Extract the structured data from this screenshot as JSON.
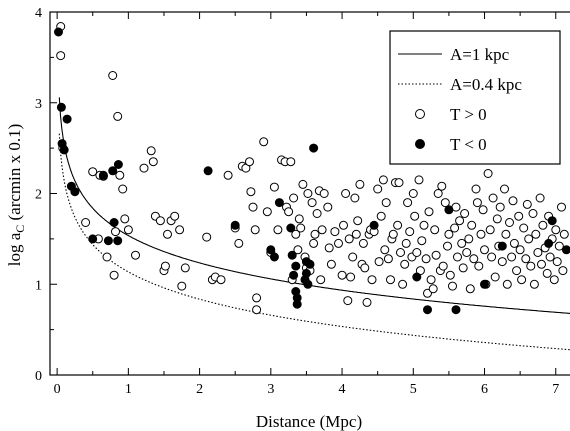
{
  "chart_data": {
    "type": "scatter",
    "title": "",
    "xlabel": "Distance (Mpc)",
    "ylabel": "log a_C (arcmin x 0.1)",
    "ylabel_parts": {
      "pre": "log a",
      "sub": "C",
      "post": " (arcmin x 0.1)"
    },
    "xlim": [
      -0.1,
      7.2
    ],
    "ylim": [
      0,
      4
    ],
    "xticks": [
      0,
      1,
      2,
      3,
      4,
      5,
      6,
      7
    ],
    "yticks": [
      0,
      1,
      2,
      3,
      4
    ],
    "legend_position": "top-right",
    "legend": [
      {
        "label": "A=1 kpc",
        "kind": "line",
        "style": "solid"
      },
      {
        "label": "A=0.4 kpc",
        "kind": "line",
        "style": "dotted"
      },
      {
        "label": "T > 0",
        "kind": "marker",
        "style": "open"
      },
      {
        "label": "T < 0",
        "kind": "marker",
        "style": "filled"
      }
    ],
    "curves": [
      {
        "name": "A=1 kpc",
        "style": "solid",
        "k": 0.4
      },
      {
        "name": "A=0.4 kpc",
        "style": "dotted",
        "k": 0.0
      }
    ],
    "series": [
      {
        "name": "T > 0",
        "marker": "open",
        "points": [
          [
            0.05,
            3.84
          ],
          [
            0.05,
            3.52
          ],
          [
            0.08,
            2.5
          ],
          [
            0.4,
            1.68
          ],
          [
            0.5,
            2.24
          ],
          [
            0.58,
            1.5
          ],
          [
            0.6,
            2.2
          ],
          [
            0.65,
            2.19
          ],
          [
            0.7,
            1.3
          ],
          [
            0.78,
            3.3
          ],
          [
            0.8,
            1.1
          ],
          [
            0.82,
            1.58
          ],
          [
            0.85,
            2.85
          ],
          [
            0.88,
            2.2
          ],
          [
            0.92,
            2.05
          ],
          [
            0.95,
            1.72
          ],
          [
            1.0,
            1.6
          ],
          [
            1.1,
            1.32
          ],
          [
            1.22,
            2.28
          ],
          [
            1.32,
            2.47
          ],
          [
            1.35,
            2.35
          ],
          [
            1.38,
            1.75
          ],
          [
            1.45,
            1.7
          ],
          [
            1.5,
            1.15
          ],
          [
            1.52,
            1.2
          ],
          [
            1.55,
            1.55
          ],
          [
            1.6,
            1.7
          ],
          [
            1.65,
            1.75
          ],
          [
            1.72,
            1.6
          ],
          [
            1.75,
            0.98
          ],
          [
            1.8,
            1.18
          ],
          [
            2.1,
            1.52
          ],
          [
            2.18,
            1.05
          ],
          [
            2.22,
            1.08
          ],
          [
            2.3,
            1.05
          ],
          [
            2.4,
            2.2
          ],
          [
            2.5,
            1.62
          ],
          [
            2.55,
            1.45
          ],
          [
            2.6,
            2.3
          ],
          [
            2.65,
            2.28
          ],
          [
            2.7,
            2.35
          ],
          [
            2.72,
            2.02
          ],
          [
            2.75,
            1.85
          ],
          [
            2.78,
            1.6
          ],
          [
            2.8,
            0.85
          ],
          [
            2.8,
            0.72
          ],
          [
            2.9,
            2.57
          ],
          [
            2.95,
            1.8
          ],
          [
            3.0,
            1.35
          ],
          [
            3.05,
            2.07
          ],
          [
            3.1,
            1.6
          ],
          [
            3.15,
            2.37
          ],
          [
            3.2,
            2.35
          ],
          [
            3.22,
            1.85
          ],
          [
            3.25,
            1.8
          ],
          [
            3.28,
            2.35
          ],
          [
            3.3,
            1.05
          ],
          [
            3.32,
            1.95
          ],
          [
            3.35,
            1.55
          ],
          [
            3.38,
            1.38
          ],
          [
            3.4,
            1.72
          ],
          [
            3.42,
            1.62
          ],
          [
            3.45,
            2.1
          ],
          [
            3.48,
            1.3
          ],
          [
            3.5,
            1.18
          ],
          [
            3.52,
            2.0
          ],
          [
            3.55,
            1.15
          ],
          [
            3.58,
            1.9
          ],
          [
            3.6,
            1.45
          ],
          [
            3.62,
            1.55
          ],
          [
            3.65,
            1.78
          ],
          [
            3.68,
            2.03
          ],
          [
            3.7,
            1.05
          ],
          [
            3.72,
            1.6
          ],
          [
            3.75,
            2.0
          ],
          [
            3.8,
            1.85
          ],
          [
            3.82,
            1.4
          ],
          [
            3.85,
            1.22
          ],
          [
            3.9,
            1.58
          ],
          [
            3.95,
            1.45
          ],
          [
            4.0,
            1.1
          ],
          [
            4.02,
            1.65
          ],
          [
            4.05,
            2.0
          ],
          [
            4.08,
            0.82
          ],
          [
            4.1,
            1.5
          ],
          [
            4.12,
            1.08
          ],
          [
            4.15,
            1.3
          ],
          [
            4.18,
            1.95
          ],
          [
            4.2,
            1.55
          ],
          [
            4.22,
            1.7
          ],
          [
            4.25,
            2.1
          ],
          [
            4.28,
            1.22
          ],
          [
            4.3,
            1.45
          ],
          [
            4.32,
            1.18
          ],
          [
            4.35,
            0.8
          ],
          [
            4.38,
            1.55
          ],
          [
            4.4,
            1.6
          ],
          [
            4.42,
            1.05
          ],
          [
            4.45,
            1.58
          ],
          [
            4.5,
            2.05
          ],
          [
            4.52,
            1.25
          ],
          [
            4.55,
            1.75
          ],
          [
            4.58,
            2.15
          ],
          [
            4.6,
            1.38
          ],
          [
            4.62,
            1.9
          ],
          [
            4.65,
            1.28
          ],
          [
            4.68,
            1.05
          ],
          [
            4.7,
            1.5
          ],
          [
            4.72,
            1.55
          ],
          [
            4.75,
            2.12
          ],
          [
            4.78,
            1.65
          ],
          [
            4.8,
            2.12
          ],
          [
            4.82,
            1.35
          ],
          [
            4.85,
            1.0
          ],
          [
            4.88,
            1.22
          ],
          [
            4.9,
            1.45
          ],
          [
            4.92,
            1.9
          ],
          [
            4.95,
            1.58
          ],
          [
            4.98,
            1.3
          ],
          [
            5.0,
            2.0
          ],
          [
            5.02,
            1.75
          ],
          [
            5.05,
            1.35
          ],
          [
            5.08,
            2.15
          ],
          [
            5.1,
            1.15
          ],
          [
            5.12,
            1.48
          ],
          [
            5.15,
            1.65
          ],
          [
            5.18,
            1.28
          ],
          [
            5.2,
            0.9
          ],
          [
            5.22,
            1.8
          ],
          [
            5.25,
            1.05
          ],
          [
            5.28,
            0.95
          ],
          [
            5.3,
            1.6
          ],
          [
            5.32,
            1.32
          ],
          [
            5.35,
            2.0
          ],
          [
            5.38,
            1.15
          ],
          [
            5.4,
            2.08
          ],
          [
            5.42,
            1.2
          ],
          [
            5.45,
            1.9
          ],
          [
            5.48,
            1.42
          ],
          [
            5.5,
            1.55
          ],
          [
            5.52,
            1.1
          ],
          [
            5.55,
            0.98
          ],
          [
            5.58,
            1.62
          ],
          [
            5.6,
            1.85
          ],
          [
            5.62,
            1.3
          ],
          [
            5.65,
            1.7
          ],
          [
            5.68,
            1.45
          ],
          [
            5.7,
            1.18
          ],
          [
            5.72,
            1.78
          ],
          [
            5.75,
            1.35
          ],
          [
            5.78,
            1.5
          ],
          [
            5.8,
            0.95
          ],
          [
            5.82,
            1.65
          ],
          [
            5.85,
            1.28
          ],
          [
            5.88,
            2.05
          ],
          [
            5.9,
            1.9
          ],
          [
            5.92,
            1.2
          ],
          [
            5.95,
            1.55
          ],
          [
            5.98,
            1.82
          ],
          [
            6.0,
            1.38
          ],
          [
            6.02,
            1.0
          ],
          [
            6.05,
            2.22
          ],
          [
            6.08,
            1.6
          ],
          [
            6.1,
            1.3
          ],
          [
            6.12,
            1.95
          ],
          [
            6.15,
            1.08
          ],
          [
            6.18,
            1.72
          ],
          [
            6.2,
            1.42
          ],
          [
            6.22,
            1.85
          ],
          [
            6.25,
            1.25
          ],
          [
            6.28,
            2.05
          ],
          [
            6.3,
            1.55
          ],
          [
            6.32,
            1.0
          ],
          [
            6.35,
            1.68
          ],
          [
            6.38,
            1.3
          ],
          [
            6.4,
            1.92
          ],
          [
            6.42,
            1.45
          ],
          [
            6.45,
            1.15
          ],
          [
            6.48,
            1.75
          ],
          [
            6.5,
            1.38
          ],
          [
            6.52,
            1.05
          ],
          [
            6.55,
            1.62
          ],
          [
            6.58,
            1.28
          ],
          [
            6.6,
            1.88
          ],
          [
            6.62,
            1.5
          ],
          [
            6.65,
            1.2
          ],
          [
            6.68,
            1.78
          ],
          [
            6.7,
            1.0
          ],
          [
            6.72,
            1.55
          ],
          [
            6.75,
            1.35
          ],
          [
            6.78,
            1.95
          ],
          [
            6.8,
            1.22
          ],
          [
            6.82,
            1.65
          ],
          [
            6.85,
            1.4
          ],
          [
            6.88,
            1.12
          ],
          [
            6.9,
            1.75
          ],
          [
            6.92,
            1.3
          ],
          [
            6.95,
            1.5
          ],
          [
            6.98,
            1.05
          ],
          [
            7.0,
            1.6
          ],
          [
            7.02,
            1.25
          ],
          [
            7.05,
            1.42
          ],
          [
            7.08,
            1.85
          ],
          [
            7.1,
            1.15
          ],
          [
            7.12,
            1.55
          ]
        ]
      },
      {
        "name": "T < 0",
        "marker": "filled",
        "points": [
          [
            0.02,
            3.78
          ],
          [
            0.06,
            2.95
          ],
          [
            0.07,
            2.55
          ],
          [
            0.1,
            2.48
          ],
          [
            0.14,
            2.82
          ],
          [
            0.2,
            2.08
          ],
          [
            0.25,
            2.02
          ],
          [
            0.5,
            1.5
          ],
          [
            0.65,
            2.2
          ],
          [
            0.72,
            1.48
          ],
          [
            0.78,
            2.25
          ],
          [
            0.8,
            1.68
          ],
          [
            0.85,
            1.48
          ],
          [
            0.86,
            2.32
          ],
          [
            2.12,
            2.25
          ],
          [
            2.5,
            1.65
          ],
          [
            3.0,
            1.38
          ],
          [
            3.05,
            1.3
          ],
          [
            3.12,
            1.9
          ],
          [
            3.28,
            1.62
          ],
          [
            3.3,
            1.32
          ],
          [
            3.32,
            1.1
          ],
          [
            3.35,
            1.2
          ],
          [
            3.35,
            0.92
          ],
          [
            3.37,
            0.85
          ],
          [
            3.37,
            0.78
          ],
          [
            3.48,
            1.05
          ],
          [
            3.5,
            1.25
          ],
          [
            3.5,
            1.12
          ],
          [
            3.52,
            1.0
          ],
          [
            3.55,
            1.22
          ],
          [
            3.6,
            2.5
          ],
          [
            4.45,
            1.65
          ],
          [
            5.05,
            1.08
          ],
          [
            5.2,
            0.72
          ],
          [
            5.5,
            1.82
          ],
          [
            5.6,
            0.72
          ],
          [
            6.0,
            1.0
          ],
          [
            6.25,
            1.42
          ],
          [
            6.9,
            1.45
          ],
          [
            6.95,
            1.7
          ],
          [
            7.15,
            1.38
          ]
        ]
      }
    ]
  }
}
